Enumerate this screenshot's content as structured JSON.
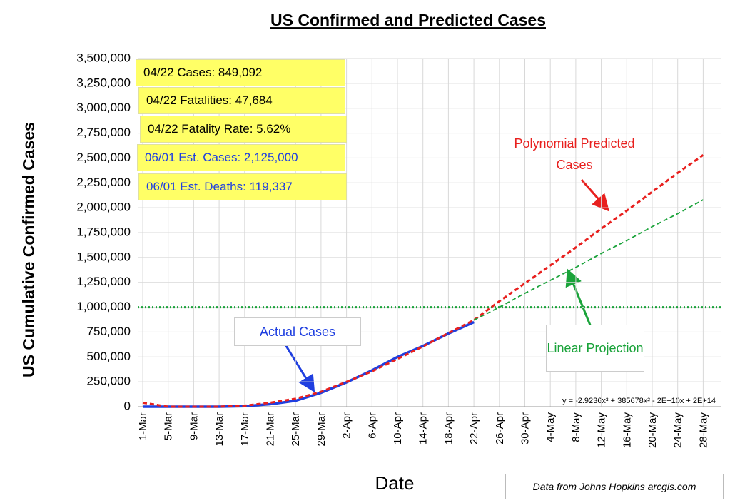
{
  "chart_data": {
    "type": "line",
    "title": "US Confirmed and Predicted Cases",
    "y_label": "US Cumulative Confirmed Cases",
    "x_label": "Date",
    "categories": [
      "1-Mar",
      "5-Mar",
      "9-Mar",
      "13-Mar",
      "17-Mar",
      "21-Mar",
      "25-Mar",
      "29-Mar",
      "2-Apr",
      "6-Apr",
      "10-Apr",
      "14-Apr",
      "18-Apr",
      "22-Apr",
      "26-Apr",
      "30-Apr",
      "4-May",
      "8-May",
      "12-May",
      "16-May",
      "20-May",
      "24-May",
      "28-May"
    ],
    "series": [
      {
        "name": "Actual Cases",
        "color": "#1f3fe0",
        "dashed": false,
        "values": [
          0,
          0,
          0,
          0,
          5000,
          25000,
          60000,
          140000,
          245000,
          365000,
          500000,
          610000,
          735000,
          850000,
          null,
          null,
          null,
          null,
          null,
          null,
          null,
          null,
          null
        ]
      },
      {
        "name": "Polynomial Predicted Cases",
        "color": "#e8201e",
        "dashed": true,
        "values": [
          40000,
          0,
          0,
          0,
          10000,
          40000,
          80000,
          150000,
          250000,
          355000,
          480000,
          605000,
          740000,
          870000,
          1060000,
          1240000,
          1420000,
          1600000,
          1790000,
          1970000,
          2160000,
          2350000,
          2530000
        ]
      },
      {
        "name": "Linear Projection",
        "color": "#1aa33a",
        "dashed": true,
        "values": [
          null,
          null,
          null,
          null,
          null,
          null,
          null,
          null,
          null,
          null,
          null,
          null,
          null,
          870000,
          1000000,
          1140000,
          1270000,
          1400000,
          1540000,
          1670000,
          1810000,
          1940000,
          2080000
        ]
      }
    ],
    "ref_line": {
      "value": 1000000,
      "color": "#1aa33a"
    },
    "ylim": [
      0,
      3500000
    ],
    "yticks": [
      0,
      {
        "value": 250000,
        "label": "250,000"
      },
      {
        "value": 500000,
        "label": "500,000"
      },
      {
        "value": 750000,
        "label": "750,000"
      },
      {
        "value": 1000000,
        "label": "1,000,000"
      },
      {
        "value": 1250000,
        "label": "1,250,000"
      },
      {
        "value": 1500000,
        "label": "1,500,000"
      },
      {
        "value": 1750000,
        "label": "1,750,000"
      },
      {
        "value": 2000000,
        "label": "2,000,000"
      },
      {
        "value": 2250000,
        "label": "2,250,000"
      },
      {
        "value": 2500000,
        "label": "2,500,000"
      },
      {
        "value": 2750000,
        "label": "2,750,000"
      },
      {
        "value": 3000000,
        "label": "3,000,000"
      },
      {
        "value": 3250000,
        "label": "3,250,000"
      },
      {
        "value": 3500000,
        "label": "3,500,000"
      }
    ],
    "grid": true,
    "annotations": [
      {
        "text": "04/22 Cases: 849,092",
        "color": "#000000"
      },
      {
        "text": "04/22 Fatalities: 47,684",
        "color": "#000000"
      },
      {
        "text": "04/22 Fatality Rate: 5.62%",
        "color": "#000000"
      },
      {
        "text": "06/01 Est. Cases: 2,125,000",
        "color": "#1f3fe0"
      },
      {
        "text": "06/01 Est. Deaths: 119,337",
        "color": "#1f3fe0"
      }
    ],
    "equation": "y = -2.9236x³ + 385678x² - 2E+10x + 2E+14",
    "source": "Data from Johns Hopkins arcgis.com"
  }
}
